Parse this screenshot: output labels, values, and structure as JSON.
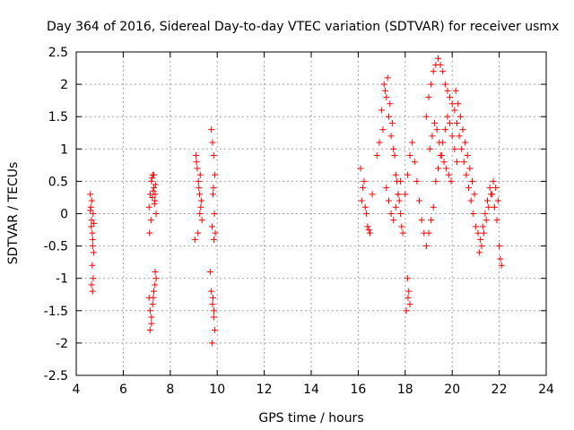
{
  "chart_data": {
    "type": "scatter",
    "title": "Day 364 of 2016, Sidereal Day-to-day VTEC variation (SDTVAR) for receiver usmx",
    "xlabel": "GPS time / hours",
    "ylabel": "SDTVAR / TECUs",
    "xlim": [
      4,
      24
    ],
    "ylim": [
      -2.5,
      2.5
    ],
    "xticks": [
      "4",
      "6",
      "8",
      "10",
      "12",
      "14",
      "16",
      "18",
      "20",
      "22",
      "24"
    ],
    "yticks": [
      "2.5",
      "2",
      "1.5",
      "1",
      "0.5",
      "0",
      "-0.5",
      "-1",
      "-1.5",
      "-2",
      "-2.5"
    ],
    "grid": true,
    "marker": "+",
    "color": "#ff0000",
    "series": [
      {
        "name": "SDTVAR",
        "x": [
          4.6,
          4.62,
          4.65,
          4.68,
          4.7,
          4.72,
          4.66,
          4.64,
          4.7,
          4.74,
          4.68,
          4.72,
          4.65,
          4.7,
          4.6,
          4.75,
          7.1,
          7.15,
          7.2,
          7.25,
          7.3,
          7.35,
          7.4,
          7.22,
          7.28,
          7.33,
          7.18,
          7.38,
          7.12,
          7.24,
          7.3,
          7.36,
          7.1,
          7.15,
          7.2,
          7.25,
          7.3,
          7.35,
          7.4,
          7.2,
          7.28,
          7.14,
          7.36,
          9.1,
          9.15,
          9.2,
          9.25,
          9.3,
          9.35,
          9.18,
          9.28,
          9.12,
          9.22,
          9.32,
          9.05,
          9.26,
          9.75,
          9.8,
          9.85,
          9.9,
          9.82,
          9.88,
          9.78,
          9.86,
          9.92,
          9.84,
          9.75,
          9.8,
          9.85,
          9.9,
          9.78,
          9.86,
          9.82,
          9.7,
          16.1,
          16.2,
          16.3,
          16.4,
          16.5,
          16.25,
          16.35,
          16.45,
          16.15,
          16.6,
          16.8,
          16.9,
          17.0,
          17.1,
          17.2,
          17.3,
          17.4,
          17.5,
          17.6,
          17.7,
          17.8,
          17.9,
          17.05,
          17.15,
          17.25,
          17.35,
          17.45,
          17.55,
          17.65,
          17.75,
          17.85,
          18.0,
          18.1,
          18.2,
          18.3,
          18.4,
          18.5,
          18.6,
          18.7,
          18.8,
          18.9,
          18.1,
          18.15,
          18.2,
          18.05,
          18.12,
          18.9,
          19.0,
          19.1,
          19.2,
          19.3,
          19.4,
          19.5,
          19.6,
          19.7,
          19.8,
          19.9,
          20.0,
          19.05,
          19.15,
          19.25,
          19.35,
          19.45,
          19.55,
          19.65,
          19.75,
          19.85,
          19.95,
          20.1,
          20.2,
          20.3,
          20.4,
          20.5,
          20.6,
          20.7,
          20.8,
          20.9,
          21.0,
          20.15,
          20.25,
          20.35,
          20.45,
          20.55,
          20.65,
          20.75,
          20.85,
          20.95,
          21.1,
          21.2,
          21.3,
          21.4,
          21.5,
          21.6,
          21.7,
          21.8,
          21.9,
          22.0,
          22.1,
          21.15,
          21.25,
          21.35,
          21.45,
          21.55,
          21.65,
          21.75,
          21.85,
          21.95,
          22.05,
          19.3,
          19.4,
          19.5,
          19.6,
          19.7,
          19.8,
          19.9,
          20.0,
          20.1,
          20.2,
          17.2,
          17.3,
          17.4,
          17.5,
          17.6,
          17.7,
          17.8,
          19.0,
          19.1,
          19.2
        ],
        "y": [
          0.3,
          0.1,
          -0.1,
          -0.3,
          -0.5,
          0.0,
          0.2,
          -0.2,
          -0.4,
          -0.6,
          -0.8,
          -1.0,
          -1.1,
          -1.2,
          0.05,
          -0.15,
          0.1,
          0.3,
          0.5,
          0.6,
          0.4,
          0.2,
          0.0,
          0.55,
          0.35,
          0.15,
          -0.1,
          0.45,
          -0.3,
          0.25,
          0.6,
          0.3,
          -1.3,
          -1.5,
          -1.6,
          -1.4,
          -1.2,
          -1.1,
          -1.0,
          -1.7,
          -1.3,
          -1.8,
          -0.9,
          0.9,
          0.7,
          0.5,
          0.3,
          0.1,
          -0.1,
          -0.3,
          0.6,
          0.8,
          0.4,
          0.2,
          -0.4,
          0.0,
          1.3,
          1.1,
          0.9,
          0.6,
          0.3,
          0.0,
          -0.2,
          -0.4,
          -0.3,
          0.4,
          -1.2,
          -1.4,
          -1.6,
          -1.8,
          -2.0,
          -1.5,
          -1.3,
          -0.9,
          0.7,
          0.4,
          0.1,
          -0.2,
          -0.3,
          0.5,
          0.0,
          -0.25,
          0.2,
          0.3,
          0.9,
          1.1,
          1.6,
          2.0,
          1.8,
          1.5,
          1.2,
          1.0,
          0.6,
          0.3,
          0.0,
          -0.3,
          1.3,
          1.9,
          2.1,
          1.7,
          1.4,
          0.9,
          0.5,
          0.2,
          -0.2,
          0.3,
          0.6,
          0.9,
          1.1,
          0.8,
          0.5,
          0.2,
          -0.1,
          -0.3,
          -0.5,
          -1.0,
          -1.2,
          -1.4,
          -1.5,
          -1.3,
          1.5,
          1.8,
          2.0,
          2.2,
          2.3,
          2.4,
          2.3,
          2.2,
          2.0,
          1.9,
          1.8,
          1.7,
          1.0,
          1.2,
          1.4,
          1.3,
          1.1,
          0.9,
          0.8,
          0.7,
          0.6,
          0.5,
          1.6,
          1.4,
          1.2,
          1.0,
          0.8,
          0.6,
          0.4,
          0.2,
          0.0,
          -0.2,
          1.9,
          1.7,
          1.5,
          1.3,
          1.1,
          0.9,
          0.7,
          0.5,
          0.3,
          -0.3,
          -0.4,
          -0.2,
          0.0,
          0.2,
          0.4,
          0.3,
          0.1,
          -0.1,
          -0.5,
          -0.8,
          -0.6,
          -0.5,
          -0.3,
          -0.1,
          0.1,
          0.3,
          0.5,
          0.4,
          0.2,
          -0.7,
          0.5,
          0.7,
          0.9,
          1.1,
          1.3,
          1.5,
          1.4,
          1.2,
          1.0,
          0.8,
          0.4,
          0.2,
          0.0,
          -0.1,
          0.1,
          0.3,
          0.5,
          -0.3,
          -0.1,
          0.1
        ]
      }
    ]
  }
}
